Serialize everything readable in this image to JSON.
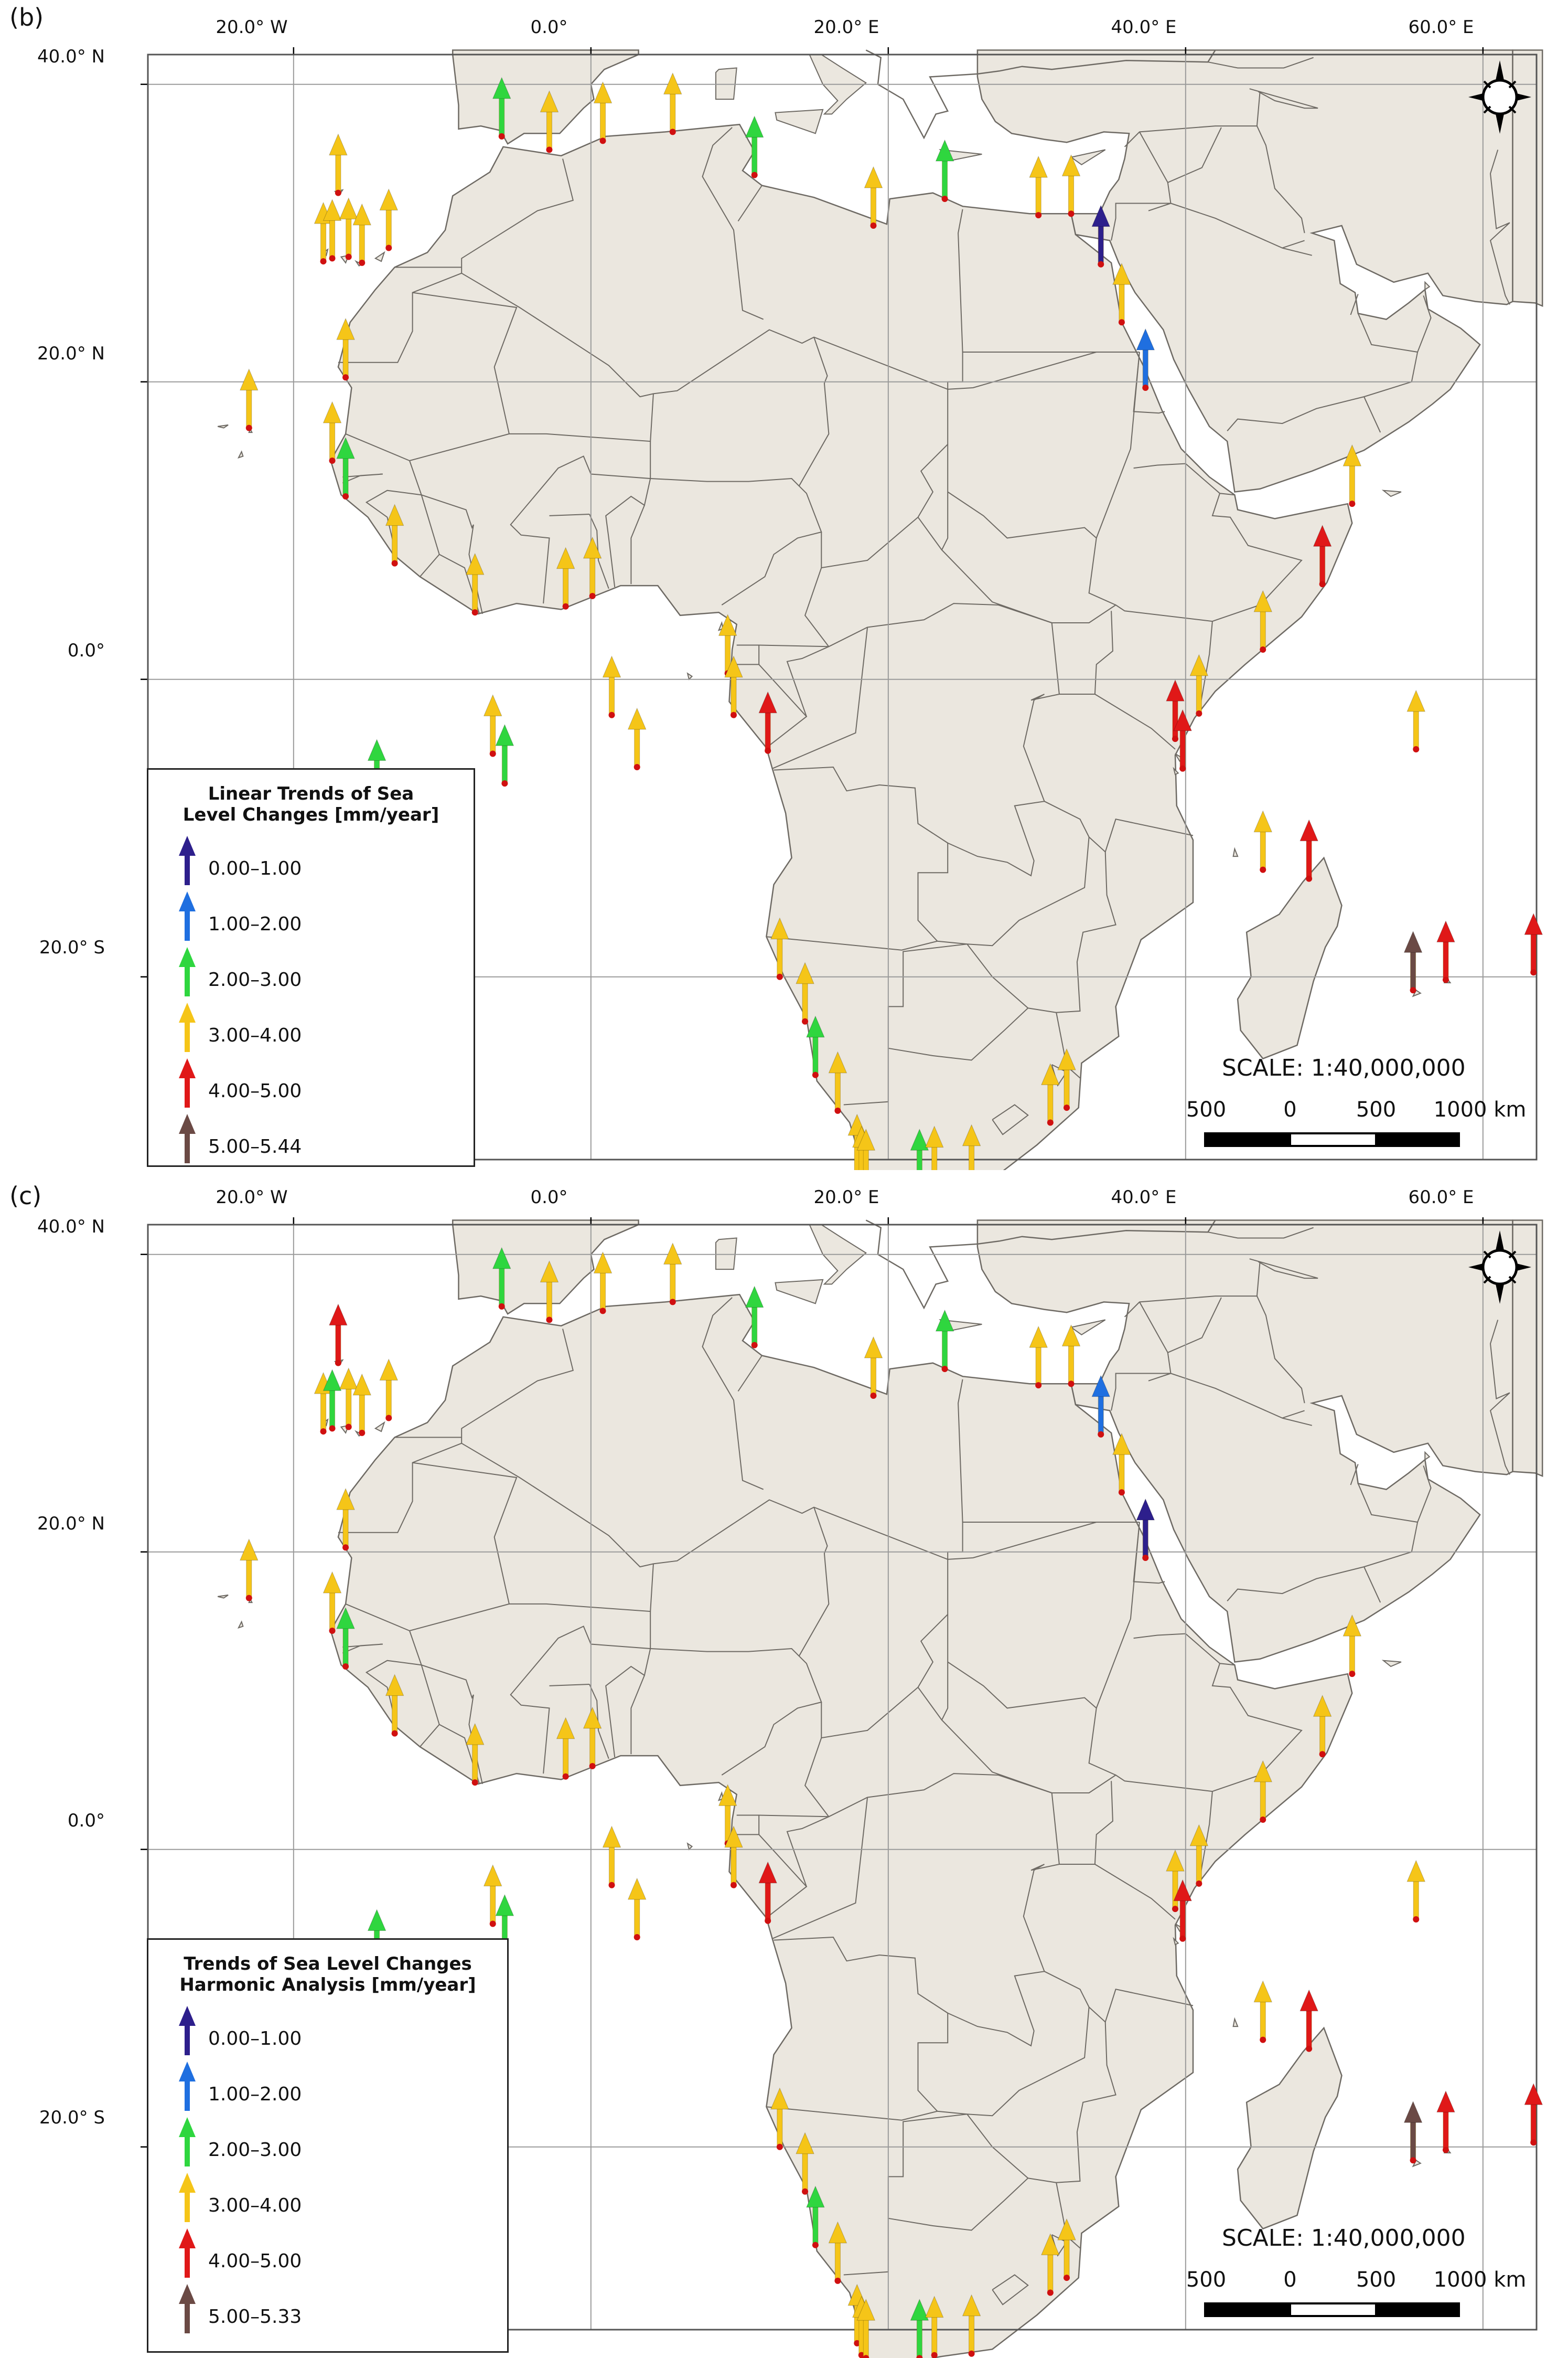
{
  "map_data": {
    "axes": {
      "longitude_labels": [
        "20.0° W",
        "0.0°",
        "20.0° E",
        "40.0° E",
        "60.0° E"
      ],
      "latitude_labels": [
        "40.0° N",
        "20.0° N",
        "0.0°",
        "20.0° S"
      ]
    },
    "scale": {
      "text": "SCALE: 1:40,000,000",
      "ticks": [
        "500",
        "0",
        "500",
        "1000 km"
      ]
    },
    "colors": {
      "ocean": "#ffffff",
      "land": "#ebe7df",
      "border": "#6e6a64",
      "graticule": "#9a9a9a",
      "class_0_1": "#2d1f8c",
      "class_1_2": "#1f6fe0",
      "class_2_3": "#2fd63f",
      "class_3_4": "#f5c518",
      "class_4_5": "#e01818",
      "class_5_plus": "#6b4a45",
      "station_dot": "#d01010"
    },
    "panels": [
      {
        "label": "(b)",
        "legend": {
          "title_line1": "Linear Trends of Sea",
          "title_line2": "Level Changes [mm/year]",
          "items": [
            {
              "range": "0.00–1.00",
              "class": "class_0_1"
            },
            {
              "range": "1.00–2.00",
              "class": "class_1_2"
            },
            {
              "range": "2.00–3.00",
              "class": "class_2_3"
            },
            {
              "range": "3.00–4.00",
              "class": "class_3_4"
            },
            {
              "range": "4.00–5.00",
              "class": "class_4_5"
            },
            {
              "range": "5.00–5.44",
              "class": "class_5_plus"
            }
          ]
        },
        "stations": [
          {
            "lon": -6.0,
            "lat": 36.5,
            "class": "class_2_3"
          },
          {
            "lon": -2.8,
            "lat": 35.6,
            "class": "class_3_4"
          },
          {
            "lon": 0.8,
            "lat": 36.2,
            "class": "class_3_4"
          },
          {
            "lon": 5.5,
            "lat": 36.8,
            "class": "class_3_4"
          },
          {
            "lon": 11.0,
            "lat": 33.9,
            "class": "class_2_3"
          },
          {
            "lon": 19.0,
            "lat": 30.5,
            "class": "class_3_4"
          },
          {
            "lon": 23.8,
            "lat": 32.3,
            "class": "class_2_3"
          },
          {
            "lon": 30.1,
            "lat": 31.2,
            "class": "class_3_4"
          },
          {
            "lon": 32.3,
            "lat": 31.3,
            "class": "class_3_4"
          },
          {
            "lon": 34.3,
            "lat": 27.9,
            "class": "class_0_1"
          },
          {
            "lon": 35.7,
            "lat": 24.0,
            "class": "class_3_4"
          },
          {
            "lon": 37.3,
            "lat": 19.6,
            "class": "class_1_2"
          },
          {
            "lon": -17.0,
            "lat": 32.7,
            "class": "class_3_4"
          },
          {
            "lon": -18.0,
            "lat": 28.1,
            "class": "class_3_4"
          },
          {
            "lon": -17.4,
            "lat": 28.3,
            "class": "class_3_4"
          },
          {
            "lon": -16.3,
            "lat": 28.4,
            "class": "class_3_4"
          },
          {
            "lon": -15.4,
            "lat": 28.0,
            "class": "class_3_4"
          },
          {
            "lon": -13.6,
            "lat": 29.0,
            "class": "class_3_4"
          },
          {
            "lon": -16.5,
            "lat": 20.3,
            "class": "class_3_4"
          },
          {
            "lon": -23.0,
            "lat": 16.9,
            "class": "class_3_4"
          },
          {
            "lon": -17.4,
            "lat": 14.7,
            "class": "class_3_4"
          },
          {
            "lon": -16.5,
            "lat": 12.3,
            "class": "class_2_3"
          },
          {
            "lon": -13.2,
            "lat": 7.8,
            "class": "class_3_4"
          },
          {
            "lon": -7.8,
            "lat": 4.5,
            "class": "class_3_4"
          },
          {
            "lon": -1.7,
            "lat": 4.9,
            "class": "class_3_4"
          },
          {
            "lon": 0.1,
            "lat": 5.6,
            "class": "class_3_4"
          },
          {
            "lon": 9.2,
            "lat": 0.4,
            "class": "class_3_4"
          },
          {
            "lon": 9.6,
            "lat": -2.4,
            "class": "class_3_4"
          },
          {
            "lon": 11.9,
            "lat": -4.8,
            "class": "class_4_5"
          },
          {
            "lon": 1.4,
            "lat": -2.4,
            "class": "class_3_4"
          },
          {
            "lon": 3.1,
            "lat": -5.9,
            "class": "class_3_4"
          },
          {
            "lon": -6.6,
            "lat": -5.0,
            "class": "class_3_4"
          },
          {
            "lon": -5.8,
            "lat": -7.0,
            "class": "class_2_3"
          },
          {
            "lon": -14.4,
            "lat": -8.0,
            "class": "class_2_3"
          },
          {
            "lon": 12.7,
            "lat": -20.0,
            "class": "class_3_4"
          },
          {
            "lon": 14.4,
            "lat": -23.0,
            "class": "class_3_4"
          },
          {
            "lon": 15.1,
            "lat": -26.6,
            "class": "class_2_3"
          },
          {
            "lon": 16.6,
            "lat": -29.0,
            "class": "class_3_4"
          },
          {
            "lon": 17.9,
            "lat": -33.2,
            "class": "class_3_4"
          },
          {
            "lon": 18.2,
            "lat": -34.0,
            "class": "class_3_4"
          },
          {
            "lon": 18.5,
            "lat": -34.2,
            "class": "class_3_4"
          },
          {
            "lon": 22.1,
            "lat": -34.2,
            "class": "class_2_3"
          },
          {
            "lon": 23.1,
            "lat": -34.0,
            "class": "class_3_4"
          },
          {
            "lon": 25.6,
            "lat": -33.9,
            "class": "class_3_4"
          },
          {
            "lon": 30.9,
            "lat": -29.8,
            "class": "class_3_4"
          },
          {
            "lon": 32.0,
            "lat": -28.8,
            "class": "class_3_4"
          },
          {
            "lon": 39.3,
            "lat": -4.0,
            "class": "class_4_5"
          },
          {
            "lon": 39.8,
            "lat": -6.0,
            "class": "class_4_5"
          },
          {
            "lon": 40.9,
            "lat": -2.3,
            "class": "class_3_4"
          },
          {
            "lon": 45.2,
            "lat": 2.0,
            "class": "class_3_4"
          },
          {
            "lon": 49.2,
            "lat": 6.4,
            "class": "class_4_5"
          },
          {
            "lon": 51.2,
            "lat": 11.8,
            "class": "class_3_4"
          },
          {
            "lon": 55.5,
            "lat": -4.7,
            "class": "class_3_4"
          },
          {
            "lon": 45.2,
            "lat": -12.8,
            "class": "class_3_4"
          },
          {
            "lon": 48.3,
            "lat": -13.4,
            "class": "class_4_5"
          },
          {
            "lon": 55.3,
            "lat": -20.9,
            "class": "class_5_plus"
          },
          {
            "lon": 57.5,
            "lat": -20.2,
            "class": "class_4_5"
          },
          {
            "lon": 63.4,
            "lat": -19.7,
            "class": "class_4_5"
          }
        ]
      },
      {
        "label": "(c)",
        "legend": {
          "title_line1": "Trends of Sea Level Changes",
          "title_line2": "Harmonic Analysis [mm/year]",
          "items": [
            {
              "range": "0.00–1.00",
              "class": "class_0_1"
            },
            {
              "range": "1.00–2.00",
              "class": "class_1_2"
            },
            {
              "range": "2.00–3.00",
              "class": "class_2_3"
            },
            {
              "range": "3.00–4.00",
              "class": "class_3_4"
            },
            {
              "range": "4.00–5.00",
              "class": "class_4_5"
            },
            {
              "range": "5.00–5.33",
              "class": "class_5_plus"
            }
          ]
        },
        "stations": [
          {
            "lon": -6.0,
            "lat": 36.5,
            "class": "class_2_3"
          },
          {
            "lon": -2.8,
            "lat": 35.6,
            "class": "class_3_4"
          },
          {
            "lon": 0.8,
            "lat": 36.2,
            "class": "class_3_4"
          },
          {
            "lon": 5.5,
            "lat": 36.8,
            "class": "class_3_4"
          },
          {
            "lon": 11.0,
            "lat": 33.9,
            "class": "class_2_3"
          },
          {
            "lon": 19.0,
            "lat": 30.5,
            "class": "class_3_4"
          },
          {
            "lon": 23.8,
            "lat": 32.3,
            "class": "class_2_3"
          },
          {
            "lon": 30.1,
            "lat": 31.2,
            "class": "class_3_4"
          },
          {
            "lon": 32.3,
            "lat": 31.3,
            "class": "class_3_4"
          },
          {
            "lon": 34.3,
            "lat": 27.9,
            "class": "class_1_2"
          },
          {
            "lon": 35.7,
            "lat": 24.0,
            "class": "class_3_4"
          },
          {
            "lon": 37.3,
            "lat": 19.6,
            "class": "class_0_1"
          },
          {
            "lon": -17.0,
            "lat": 32.7,
            "class": "class_4_5"
          },
          {
            "lon": -18.0,
            "lat": 28.1,
            "class": "class_3_4"
          },
          {
            "lon": -17.4,
            "lat": 28.3,
            "class": "class_2_3"
          },
          {
            "lon": -16.3,
            "lat": 28.4,
            "class": "class_3_4"
          },
          {
            "lon": -15.4,
            "lat": 28.0,
            "class": "class_3_4"
          },
          {
            "lon": -13.6,
            "lat": 29.0,
            "class": "class_3_4"
          },
          {
            "lon": -16.5,
            "lat": 20.3,
            "class": "class_3_4"
          },
          {
            "lon": -23.0,
            "lat": 16.9,
            "class": "class_3_4"
          },
          {
            "lon": -17.4,
            "lat": 14.7,
            "class": "class_3_4"
          },
          {
            "lon": -16.5,
            "lat": 12.3,
            "class": "class_2_3"
          },
          {
            "lon": -13.2,
            "lat": 7.8,
            "class": "class_3_4"
          },
          {
            "lon": -7.8,
            "lat": 4.5,
            "class": "class_3_4"
          },
          {
            "lon": -1.7,
            "lat": 4.9,
            "class": "class_3_4"
          },
          {
            "lon": 0.1,
            "lat": 5.6,
            "class": "class_3_4"
          },
          {
            "lon": 9.2,
            "lat": 0.4,
            "class": "class_3_4"
          },
          {
            "lon": 9.6,
            "lat": -2.4,
            "class": "class_3_4"
          },
          {
            "lon": 11.9,
            "lat": -4.8,
            "class": "class_4_5"
          },
          {
            "lon": 1.4,
            "lat": -2.4,
            "class": "class_3_4"
          },
          {
            "lon": 3.1,
            "lat": -5.9,
            "class": "class_3_4"
          },
          {
            "lon": -6.6,
            "lat": -5.0,
            "class": "class_3_4"
          },
          {
            "lon": -5.8,
            "lat": -7.0,
            "class": "class_2_3"
          },
          {
            "lon": -14.4,
            "lat": -8.0,
            "class": "class_2_3"
          },
          {
            "lon": 12.7,
            "lat": -20.0,
            "class": "class_3_4"
          },
          {
            "lon": 14.4,
            "lat": -23.0,
            "class": "class_3_4"
          },
          {
            "lon": 15.1,
            "lat": -26.6,
            "class": "class_2_3"
          },
          {
            "lon": 16.6,
            "lat": -29.0,
            "class": "class_3_4"
          },
          {
            "lon": 17.9,
            "lat": -33.2,
            "class": "class_3_4"
          },
          {
            "lon": 18.2,
            "lat": -34.0,
            "class": "class_3_4"
          },
          {
            "lon": 18.5,
            "lat": -34.2,
            "class": "class_3_4"
          },
          {
            "lon": 22.1,
            "lat": -34.2,
            "class": "class_2_3"
          },
          {
            "lon": 23.1,
            "lat": -34.0,
            "class": "class_3_4"
          },
          {
            "lon": 25.6,
            "lat": -33.9,
            "class": "class_3_4"
          },
          {
            "lon": 30.9,
            "lat": -29.8,
            "class": "class_3_4"
          },
          {
            "lon": 32.0,
            "lat": -28.8,
            "class": "class_3_4"
          },
          {
            "lon": 39.3,
            "lat": -4.0,
            "class": "class_3_4"
          },
          {
            "lon": 39.8,
            "lat": -6.0,
            "class": "class_4_5"
          },
          {
            "lon": 40.9,
            "lat": -2.3,
            "class": "class_3_4"
          },
          {
            "lon": 45.2,
            "lat": 2.0,
            "class": "class_3_4"
          },
          {
            "lon": 49.2,
            "lat": 6.4,
            "class": "class_3_4"
          },
          {
            "lon": 51.2,
            "lat": 11.8,
            "class": "class_3_4"
          },
          {
            "lon": 55.5,
            "lat": -4.7,
            "class": "class_3_4"
          },
          {
            "lon": 45.2,
            "lat": -12.8,
            "class": "class_3_4"
          },
          {
            "lon": 48.3,
            "lat": -13.4,
            "class": "class_4_5"
          },
          {
            "lon": 55.3,
            "lat": -20.9,
            "class": "class_5_plus"
          },
          {
            "lon": 57.5,
            "lat": -20.2,
            "class": "class_4_5"
          },
          {
            "lon": 63.4,
            "lat": -19.7,
            "class": "class_4_5"
          }
        ]
      }
    ]
  }
}
